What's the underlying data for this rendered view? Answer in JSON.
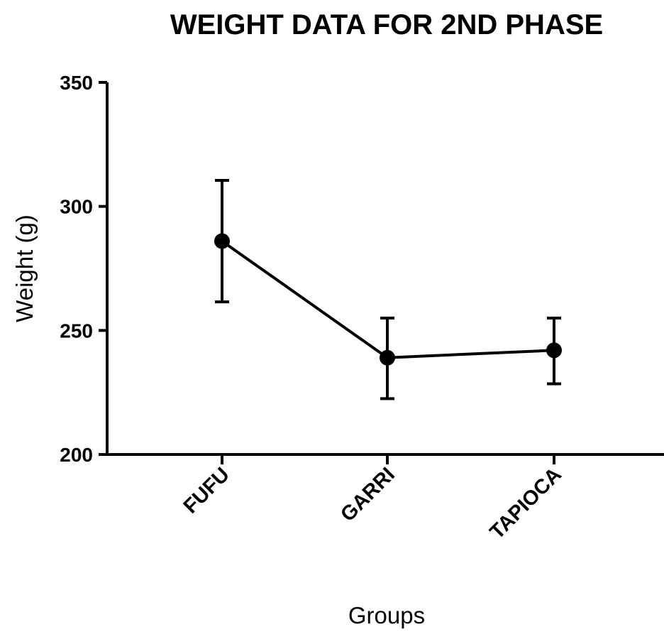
{
  "chart_data": {
    "type": "line",
    "title": "WEIGHT DATA FOR 2ND PHASE",
    "xlabel": "Groups",
    "ylabel": "Weight (g)",
    "categories": [
      "FUFU",
      "GARRI",
      "TAPIOCA"
    ],
    "series": [
      {
        "values": [
          286,
          239,
          242
        ],
        "error_low": [
          261.5,
          222.5,
          228.5
        ],
        "error_high": [
          310.5,
          255,
          255
        ]
      }
    ],
    "ylim": [
      200,
      350
    ],
    "yticks": [
      200,
      250,
      300,
      350
    ],
    "grid": false,
    "legend": "none",
    "colors": {
      "line": "#000000",
      "marker": "#000000"
    }
  }
}
